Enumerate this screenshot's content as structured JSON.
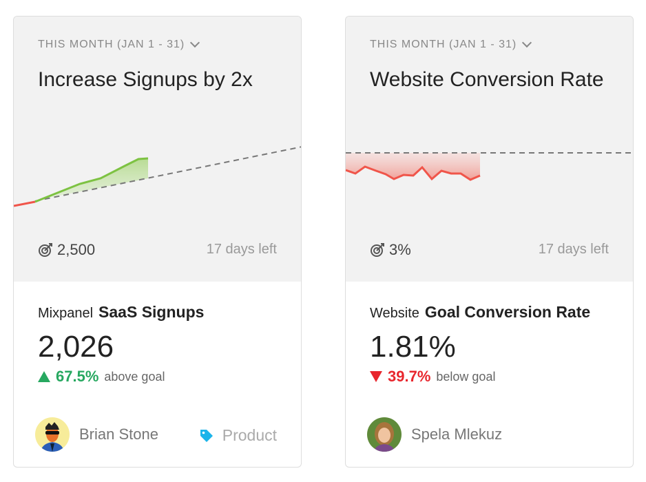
{
  "cards": [
    {
      "period": "THIS MONTH (JAN 1 - 31)",
      "title": "Increase Signups by 2x",
      "target": "2,500",
      "days_left": "17 days left",
      "source": "Mixpanel",
      "metric": "SaaS Signups",
      "value": "2,026",
      "delta_pct": "67.5%",
      "delta_text": "above goal",
      "delta_direction": "up",
      "owner": "Brian Stone",
      "tag": "Product",
      "colors": {
        "positive": "#27a860",
        "line": "#7dc242",
        "tag": "#1bb4ea"
      }
    },
    {
      "period": "THIS MONTH (JAN 1 - 31)",
      "title": "Website Conversion Rate",
      "target": "3%",
      "days_left": "17 days left",
      "source": "Website",
      "metric": "Goal Conversion Rate",
      "value": "1.81%",
      "delta_pct": "39.7%",
      "delta_text": "below goal",
      "delta_direction": "down",
      "owner": "Spela Mlekuz",
      "colors": {
        "negative": "#e8262d",
        "line": "#f0554a"
      }
    }
  ]
}
